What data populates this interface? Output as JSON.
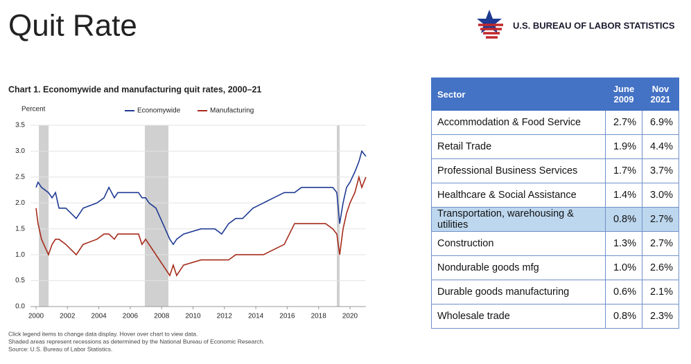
{
  "header": {
    "title": "Quit Rate",
    "logo_text": "U.S. BUREAU OF LABOR STATISTICS"
  },
  "chart_data": {
    "type": "line",
    "title": "Chart 1. Economywide and manufacturing quit rates, 2000–21",
    "y_label": "Percent",
    "x": [
      2000.0,
      2000.13,
      2000.35,
      2000.79,
      2001.02,
      2001.24,
      2001.46,
      2001.9,
      2002.56,
      2003.0,
      2003.88,
      2004.33,
      2004.64,
      2004.99,
      2005.21,
      2006.53,
      2006.75,
      2006.98,
      2007.2,
      2007.64,
      2008.08,
      2008.52,
      2008.74,
      2008.96,
      2009.4,
      2010.51,
      2011.39,
      2011.83,
      2012.27,
      2012.72,
      2013.16,
      2013.82,
      2014.48,
      2015.14,
      2015.81,
      2016.47,
      2016.91,
      2017.57,
      2018.45,
      2018.9,
      2019.16,
      2019.34,
      2019.56,
      2019.78,
      2020.0,
      2020.31,
      2020.57,
      2020.75,
      2021.01
    ],
    "series": [
      {
        "name": "Economywide",
        "color": "#1f3a93",
        "values": [
          2.3,
          2.4,
          2.3,
          2.2,
          2.1,
          2.2,
          1.9,
          1.9,
          1.7,
          1.9,
          2.0,
          2.1,
          2.3,
          2.1,
          2.2,
          2.2,
          2.1,
          2.1,
          2.0,
          1.9,
          1.6,
          1.3,
          1.2,
          1.3,
          1.4,
          1.5,
          1.5,
          1.4,
          1.6,
          1.7,
          1.7,
          1.9,
          2.0,
          2.1,
          2.2,
          2.2,
          2.3,
          2.3,
          2.3,
          2.3,
          2.2,
          1.6,
          2.0,
          2.3,
          2.4,
          2.6,
          2.8,
          3.0,
          2.9
        ]
      },
      {
        "name": "Manufacturing",
        "color": "#a52a1a",
        "values": [
          1.9,
          1.6,
          1.3,
          1.0,
          1.2,
          1.3,
          1.3,
          1.2,
          1.0,
          1.2,
          1.3,
          1.4,
          1.4,
          1.3,
          1.4,
          1.4,
          1.2,
          1.3,
          1.2,
          1.0,
          0.8,
          0.6,
          0.8,
          0.6,
          0.8,
          0.9,
          0.9,
          0.9,
          0.9,
          1.0,
          1.0,
          1.0,
          1.0,
          1.1,
          1.2,
          1.6,
          1.6,
          1.6,
          1.6,
          1.5,
          1.4,
          1.0,
          1.5,
          1.8,
          2.0,
          2.2,
          2.5,
          2.3,
          2.5
        ]
      }
    ],
    "recessions": [
      [
        2000.18,
        2000.8
      ],
      [
        2006.93,
        2008.43
      ],
      [
        2019.16,
        2019.34
      ]
    ],
    "recession_color": "#d0d0d0",
    "xlim": [
      2000,
      2021.2
    ],
    "xticks": [
      2000,
      2002,
      2004,
      2006,
      2008,
      2010,
      2012,
      2014,
      2016,
      2018,
      2020
    ],
    "ylim": [
      0,
      3.5
    ],
    "yticks": [
      {
        "value": 0,
        "label": "0.0"
      },
      0.5,
      {
        "value": 1,
        "label": "1.0"
      },
      1.5,
      {
        "value": 2,
        "label": "2.0"
      },
      2.5,
      {
        "value": 3,
        "label": "3.0"
      },
      3.5
    ],
    "grid": true,
    "notes": [
      "Click legend items to change data display. Hover over chart to view data.",
      "Shaded areas represent recessions as determined by the National Bureau of Economic Research.",
      "Source: U.S. Bureau of Labor Statistics."
    ]
  },
  "table": {
    "header": [
      "Sector",
      "June 2009",
      "Nov 2021"
    ],
    "rows": [
      [
        "Accommodation & Food Service",
        "2.7%",
        "6.9%"
      ],
      [
        "Retail Trade",
        "1.9%",
        "4.4%"
      ],
      [
        "Professional Business Services",
        "1.7%",
        "3.7%"
      ],
      [
        "Healthcare & Social Assistance",
        "1.4%",
        "3.0%"
      ],
      [
        "Transportation, warehousing & utilities",
        "0.8%",
        "2.7%"
      ],
      [
        "Construction",
        "1.3%",
        "2.7%"
      ],
      [
        "Nondurable goods mfg",
        "1.0%",
        "2.6%"
      ],
      [
        "Durable goods manufacturing",
        "0.6%",
        "2.1%"
      ],
      [
        "Wholesale trade",
        "0.8%",
        "2.3%"
      ]
    ]
  }
}
